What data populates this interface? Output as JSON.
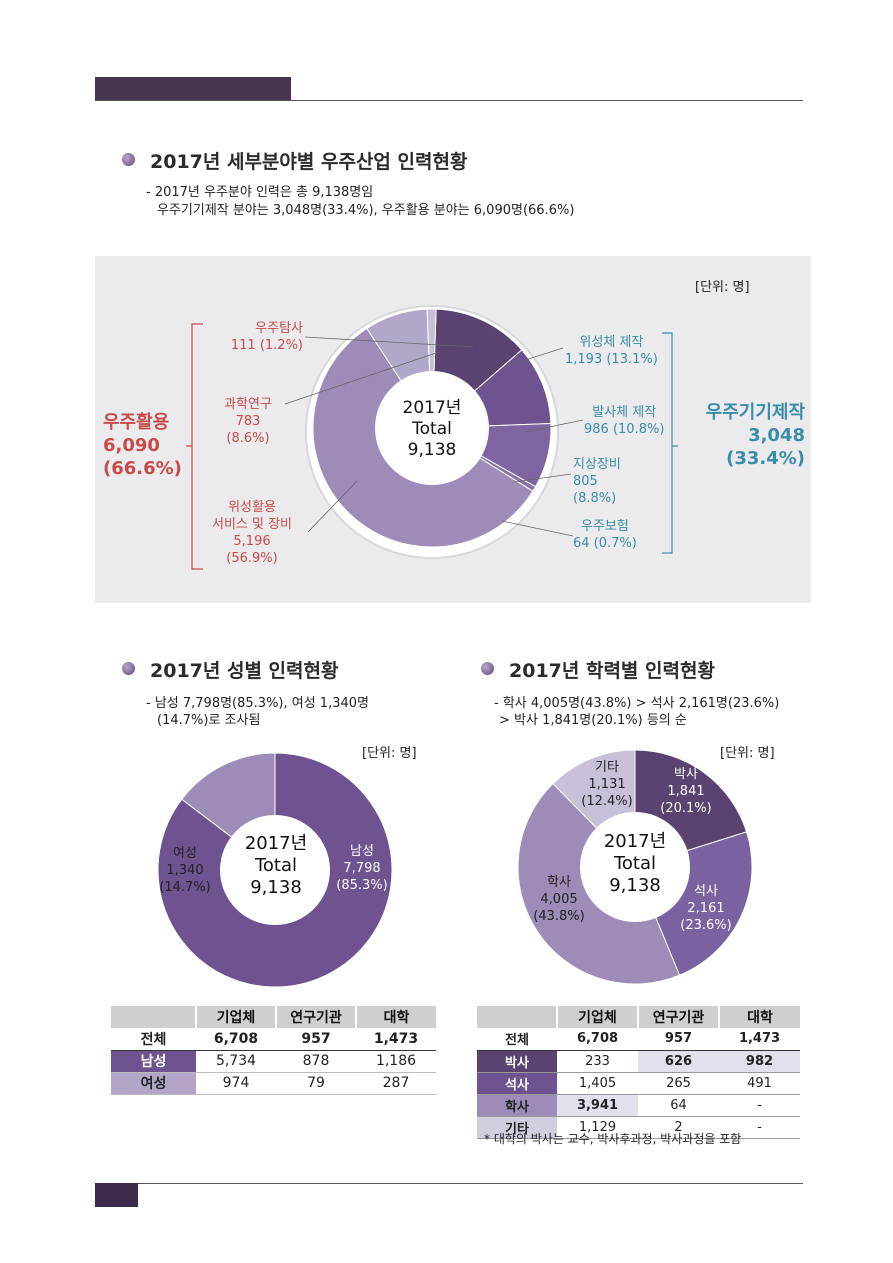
{
  "section1": {
    "title": "2017년 세부분야별 우주산업 인력현황",
    "desc_line1": "- 2017년 우주분야 인력은 총 9,138명임",
    "desc_line2": "우주기기제작 분야는 3,048명(33.4%), 우주활용 분야는 6,090명(66.6%)",
    "unit": "[단위: 명]",
    "left_group": {
      "name": "우주활용",
      "value": "6,090",
      "pct": "(66.6%)"
    },
    "right_group": {
      "name": "우주기기제작",
      "value": "3,048",
      "pct": "(33.4%)"
    },
    "center": {
      "year": "2017년",
      "total_label": "Total",
      "total": "9,138"
    },
    "labels": {
      "exploration_name": "우주탐사",
      "exploration_val": "111 (1.2%)",
      "science_name": "과학연구",
      "science_val": "783",
      "science_pct": "(8.6%)",
      "service_name1": "위성활용",
      "service_name2": "서비스 및 장비",
      "service_val": "5,196",
      "service_pct": "(56.9%)",
      "satellite_name": "위성체 제작",
      "satellite_val": "1,193 (13.1%)",
      "launch_name": "발사체 제작",
      "launch_val": "986 (10.8%)",
      "ground_name": "지상장비",
      "ground_val": "805",
      "ground_pct": "(8.8%)",
      "insurance_name": "우주보험",
      "insurance_val": "64 (0.7%)"
    }
  },
  "section2": {
    "title": "2017년 성별 인력현황",
    "desc_line1": "- 남성 7,798명(85.3%), 여성 1,340명",
    "desc_line2": "(14.7%)로 조사됨",
    "unit": "[단위: 명]",
    "center": {
      "year": "2017년",
      "total_label": "Total",
      "total": "9,138"
    },
    "labels": {
      "male_name": "남성",
      "male_val": "7,798",
      "male_pct": "(85.3%)",
      "female_name": "여성",
      "female_val": "1,340",
      "female_pct": "(14.7%)"
    },
    "table": {
      "headers": [
        "기업체",
        "연구기관",
        "대학"
      ],
      "rows": [
        {
          "label": "전체",
          "cells": [
            "6,708",
            "957",
            "1,473"
          ]
        },
        {
          "label": "남성",
          "cells": [
            "5,734",
            "878",
            "1,186"
          ]
        },
        {
          "label": "여성",
          "cells": [
            "974",
            "79",
            "287"
          ]
        }
      ]
    }
  },
  "section3": {
    "title": "2017년 학력별 인력현황",
    "desc_line1": "- 학사 4,005명(43.8%) > 석사 2,161명(23.6%)",
    "desc_line2": "> 박사 1,841명(20.1%) 등의 순",
    "unit": "[단위: 명]",
    "center": {
      "year": "2017년",
      "total_label": "Total",
      "total": "9,138"
    },
    "labels": {
      "phd_name": "박사",
      "phd_val": "1,841",
      "phd_pct": "(20.1%)",
      "master_name": "석사",
      "master_val": "2,161",
      "master_pct": "(23.6%)",
      "bachelor_name": "학사",
      "bachelor_val": "4,005",
      "bachelor_pct": "(43.8%)",
      "other_name": "기타",
      "other_val": "1,131",
      "other_pct": "(12.4%)"
    },
    "table": {
      "headers": [
        "기업체",
        "연구기관",
        "대학"
      ],
      "rows": [
        {
          "label": "전체",
          "cells": [
            "6,708",
            "957",
            "1,473"
          ]
        },
        {
          "label": "박사",
          "cells": [
            "233",
            "626",
            "982"
          ]
        },
        {
          "label": "석사",
          "cells": [
            "1,405",
            "265",
            "491"
          ]
        },
        {
          "label": "학사",
          "cells": [
            "3,941",
            "64",
            "-"
          ]
        },
        {
          "label": "기타",
          "cells": [
            "1,129",
            "2",
            "-"
          ]
        }
      ]
    },
    "note": "* 대학의 박사는 교수, 박사후과정, 박사과정을 포함"
  },
  "colors": {
    "dark_purple": "#5a4370",
    "mid_purple": "#6e5390",
    "light_purple": "#9d8cb8",
    "pale_purple": "#c9bfd8",
    "red_accent": "#c94a4a",
    "blue_accent": "#3a8da8"
  },
  "chart_data": [
    {
      "type": "pie",
      "title": "2017년 세부분야별 우주산업 인력현황",
      "categories": [
        "위성체 제작",
        "발사체 제작",
        "지상장비",
        "우주보험",
        "위성활용 서비스 및 장비",
        "과학연구",
        "우주탐사"
      ],
      "values": [
        1193,
        986,
        805,
        64,
        5196,
        783,
        111
      ],
      "percent": [
        13.1,
        10.8,
        8.8,
        0.7,
        56.9,
        8.6,
        1.2
      ],
      "total": 9138,
      "groups": [
        {
          "name": "우주기기제작",
          "value": 3048,
          "percent": 33.4
        },
        {
          "name": "우주활용",
          "value": 6090,
          "percent": 66.6
        }
      ]
    },
    {
      "type": "pie",
      "title": "2017년 성별 인력현황",
      "categories": [
        "남성",
        "여성"
      ],
      "values": [
        7798,
        1340
      ],
      "percent": [
        85.3,
        14.7
      ],
      "total": 9138
    },
    {
      "type": "pie",
      "title": "2017년 학력별 인력현황",
      "categories": [
        "박사",
        "석사",
        "학사",
        "기타"
      ],
      "values": [
        1841,
        2161,
        4005,
        1131
      ],
      "percent": [
        20.1,
        23.6,
        43.8,
        12.4
      ],
      "total": 9138
    }
  ]
}
